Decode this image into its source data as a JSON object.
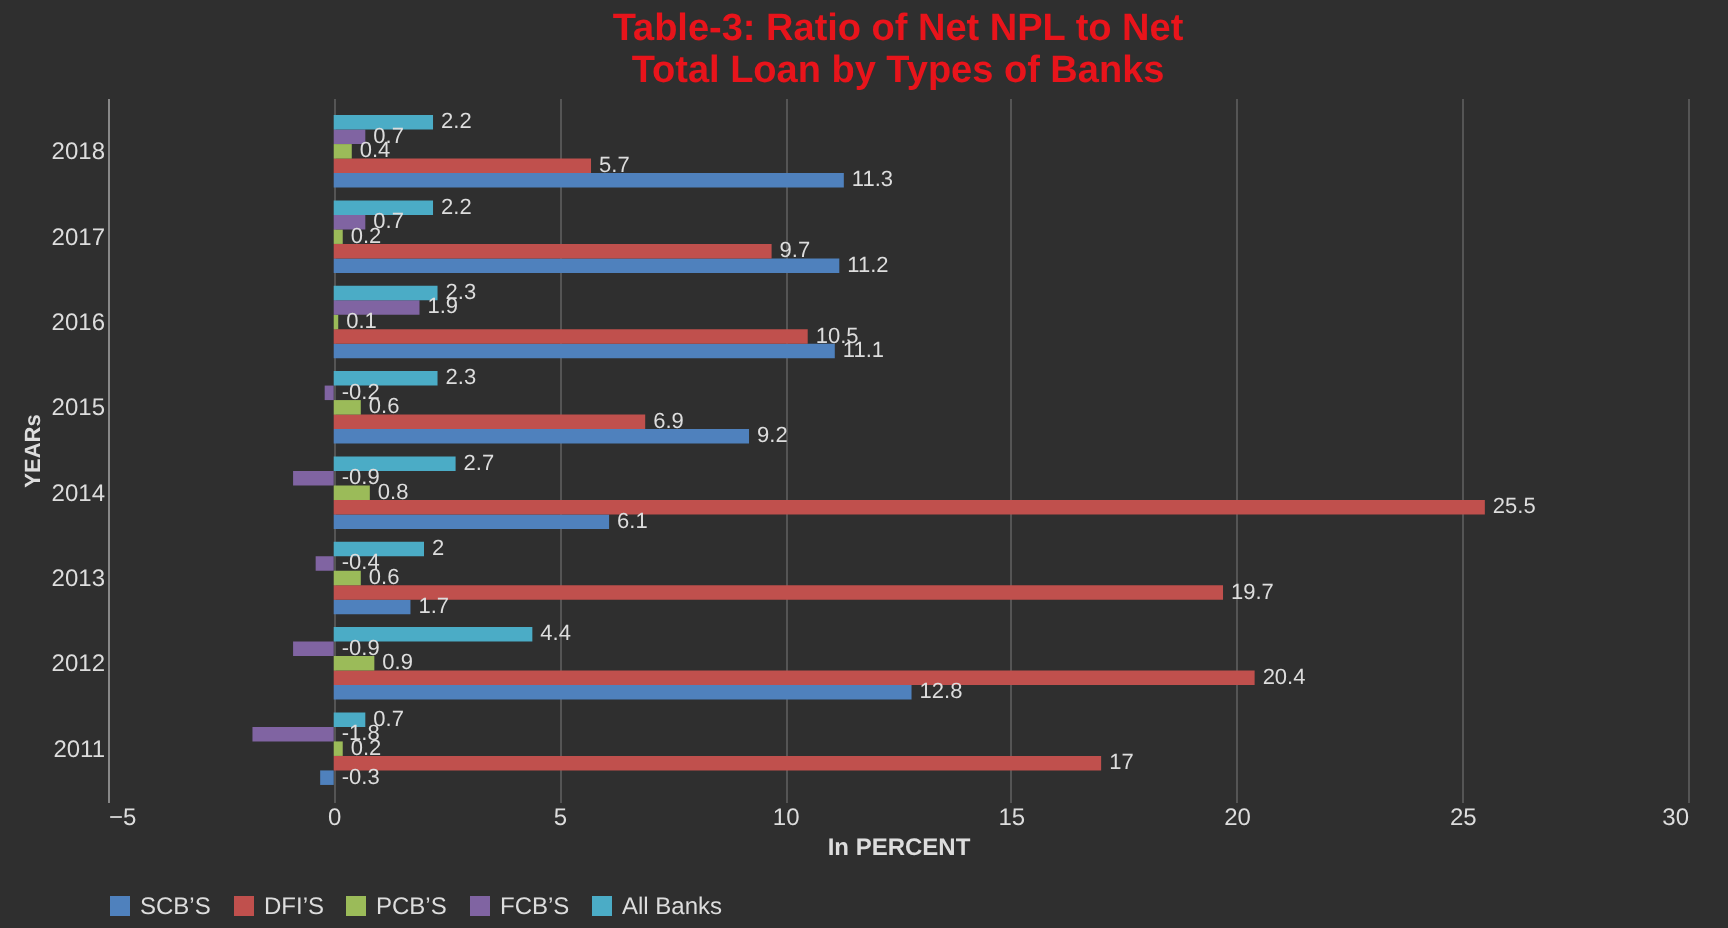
{
  "chart_data": {
    "type": "bar",
    "orientation": "horizontal",
    "title": "Table-3: Ratio of Net NPL to Net Total Loan by Types of Banks",
    "xlabel": "In PERCENT",
    "ylabel": "YEARs",
    "categories": [
      "2018",
      "2017",
      "2016",
      "2015",
      "2014",
      "2013",
      "2012",
      "2011"
    ],
    "series": [
      {
        "name": "SCB’S",
        "color": "#4f81bd",
        "values": [
          11.3,
          11.2,
          11.1,
          9.2,
          6.1,
          1.7,
          12.8,
          -0.3
        ]
      },
      {
        "name": "DFI’S",
        "color": "#c0504d",
        "values": [
          5.7,
          9.7,
          10.5,
          6.9,
          25.5,
          19.7,
          20.4,
          17
        ]
      },
      {
        "name": "PCB’S",
        "color": "#9bbb59",
        "values": [
          0.4,
          0.2,
          0.1,
          0.6,
          0.8,
          0.6,
          0.9,
          0.2
        ]
      },
      {
        "name": "FCB’S",
        "color": "#8064a2",
        "values": [
          0.7,
          0.7,
          1.9,
          -0.2,
          -0.9,
          -0.4,
          -0.9,
          -1.8
        ]
      },
      {
        "name": "All Banks",
        "color": "#4bacc6",
        "values": [
          2.2,
          2.2,
          2.3,
          2.3,
          2.7,
          2,
          4.4,
          0.7
        ]
      }
    ],
    "xlim": [
      -5,
      30
    ],
    "xticks": [
      -5,
      0,
      5,
      10,
      15,
      20,
      25,
      30
    ],
    "grid": "x",
    "legend": "bottom",
    "data_labels": true
  }
}
